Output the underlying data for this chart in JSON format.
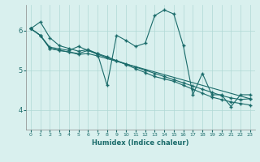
{
  "xlabel": "Humidex (Indice chaleur)",
  "xlim": [
    -0.5,
    23.5
  ],
  "ylim": [
    3.5,
    6.65
  ],
  "yticks": [
    4,
    5,
    6
  ],
  "xticks": [
    0,
    1,
    2,
    3,
    4,
    5,
    6,
    7,
    8,
    9,
    10,
    11,
    12,
    13,
    14,
    15,
    16,
    17,
    18,
    19,
    20,
    21,
    22,
    23
  ],
  "background_color": "#d9f0ee",
  "grid_color": "#b0d8d5",
  "line_color": "#1a6b6a",
  "marker": "+",
  "lines": [
    {
      "x": [
        0,
        1,
        2,
        3,
        4,
        5,
        6,
        7,
        8,
        9,
        10,
        11,
        12,
        13,
        14,
        15,
        16,
        17,
        18,
        19,
        20,
        21,
        22,
        23
      ],
      "y": [
        6.05,
        6.22,
        5.82,
        5.62,
        5.55,
        5.48,
        5.52,
        5.42,
        4.62,
        5.88,
        5.75,
        5.6,
        5.68,
        6.38,
        6.52,
        6.42,
        5.62,
        4.38,
        4.92,
        4.38,
        4.38,
        4.08,
        4.38,
        4.38
      ]
    },
    {
      "x": [
        0,
        1,
        2,
        3,
        4,
        5,
        6,
        7,
        8,
        9,
        10,
        11,
        12,
        13,
        14,
        15,
        16,
        17,
        18,
        19,
        20,
        21,
        22,
        23
      ],
      "y": [
        6.05,
        5.88,
        5.55,
        5.5,
        5.46,
        5.42,
        5.5,
        5.4,
        5.32,
        5.24,
        5.16,
        5.08,
        5.0,
        4.92,
        4.84,
        4.76,
        4.68,
        4.6,
        4.52,
        4.44,
        4.36,
        4.3,
        4.26,
        4.28
      ]
    },
    {
      "x": [
        0,
        1,
        2,
        3,
        4,
        5,
        6,
        7,
        8,
        9,
        10,
        11,
        12,
        13,
        14,
        15,
        16,
        17,
        18,
        19,
        20,
        21,
        22,
        23
      ],
      "y": [
        6.05,
        5.88,
        5.58,
        5.54,
        5.5,
        5.6,
        5.5,
        5.42,
        5.34,
        5.24,
        5.14,
        5.04,
        4.94,
        4.84,
        4.78,
        4.72,
        4.62,
        4.52,
        4.42,
        4.32,
        4.26,
        4.2,
        4.16,
        4.12
      ]
    },
    {
      "x": [
        0,
        1,
        2,
        3,
        4,
        5,
        6,
        7,
        23
      ],
      "y": [
        6.05,
        5.88,
        5.55,
        5.5,
        5.46,
        5.4,
        5.42,
        5.36,
        4.28
      ]
    }
  ]
}
